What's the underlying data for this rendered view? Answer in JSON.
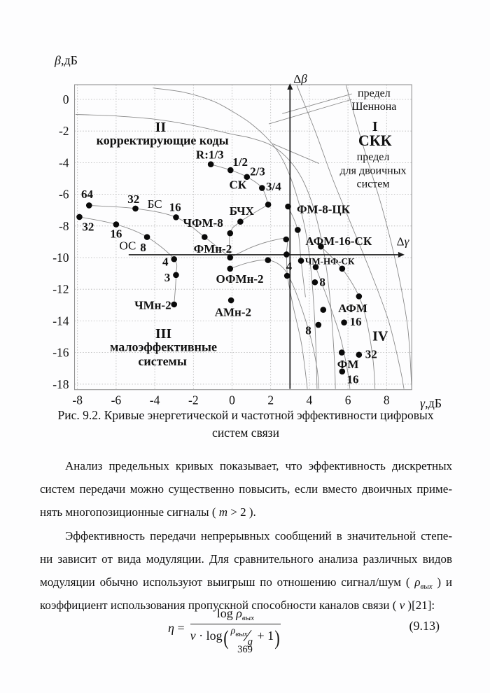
{
  "chart_data": {
    "type": "scatter",
    "title": "Кривые энергетической и частотной эффективности цифровых систем связи",
    "xlabel": {
      "italic": "γ",
      "rest": ",дБ"
    },
    "ylabel": {
      "italic": "β",
      "rest": ",дБ"
    },
    "xlim": [
      -8.15,
      9.3
    ],
    "ylim": [
      -18.35,
      0.93
    ],
    "x_ticks": [
      -8,
      -6,
      -4,
      -2,
      0,
      2,
      4,
      6,
      8
    ],
    "y_ticks": [
      0,
      -2,
      -4,
      -6,
      -8,
      -10,
      -12,
      -14,
      -16,
      -18
    ],
    "grid": true,
    "axes_arrows": {
      "dbeta": {
        "x": 3,
        "y_from": -18.3,
        "y_to": 0.62,
        "label_parts": [
          {
            "t": "Δ",
            "i": false
          },
          {
            "t": "β",
            "i": true
          }
        ],
        "label_x": 3.18,
        "label_y": 1.28
      },
      "dgamma": {
        "y": -9.82,
        "x_from": -5.35,
        "x_to": 8.6,
        "label_parts": [
          {
            "t": "Δ",
            "i": false
          },
          {
            "t": "γ",
            "i": true
          }
        ],
        "label_x": 8.52,
        "label_y": -9.0
      }
    },
    "points": [
      {
        "x": -7.4,
        "y": -6.7,
        "label": "64"
      },
      {
        "x": -5.0,
        "y": -6.9,
        "label": "32"
      },
      {
        "x": -2.9,
        "y": -7.45,
        "label": "16"
      },
      {
        "x": -1.42,
        "y": -8.7,
        "label": "ЧФМ-8"
      },
      {
        "x": -7.9,
        "y": -7.43,
        "label": "32"
      },
      {
        "x": -6.0,
        "y": -7.9,
        "label": "16"
      },
      {
        "x": -4.4,
        "y": -8.7,
        "label": "8"
      },
      {
        "x": -3.0,
        "y": -10.1,
        "label": "4"
      },
      {
        "x": -2.9,
        "y": -11.1,
        "label": "3"
      },
      {
        "x": -3.0,
        "y": -12.96,
        "label": "ЧМн-2"
      },
      {
        "x": -0.1,
        "y": -10.0,
        "label": "ФМн-2"
      },
      {
        "x": -0.1,
        "y": -10.7,
        "label": "ОФМн-2"
      },
      {
        "x": -0.05,
        "y": -12.7,
        "label": "АМн-2"
      },
      {
        "x": -0.1,
        "y": -8.46,
        "label": ""
      },
      {
        "x": 0.43,
        "y": -7.73,
        "label": ""
      },
      {
        "x": 1.87,
        "y": -6.65,
        "label": ""
      },
      {
        "x": -1.1,
        "y": -4.1,
        "label": "R:1/3"
      },
      {
        "x": -0.08,
        "y": -4.47,
        "label": "1/2"
      },
      {
        "x": 0.77,
        "y": -4.9,
        "label": "2/3"
      },
      {
        "x": 1.55,
        "y": -5.6,
        "label": "3/4"
      },
      {
        "x": 2.9,
        "y": -6.77,
        "label": "ФМ-8-ЦК"
      },
      {
        "x": 3.4,
        "y": -8.25,
        "label": ""
      },
      {
        "x": 2.8,
        "y": -8.85,
        "label": ""
      },
      {
        "x": 2.82,
        "y": -9.8,
        "label": "4"
      },
      {
        "x": 1.86,
        "y": -10.16,
        "label": ""
      },
      {
        "x": 3.57,
        "y": -10.2,
        "label": "ЧМ-НФ-СК"
      },
      {
        "x": 4.33,
        "y": -10.6,
        "label": ""
      },
      {
        "x": 5.7,
        "y": -10.7,
        "label": ""
      },
      {
        "x": 2.85,
        "y": -11.15,
        "label": ""
      },
      {
        "x": 4.29,
        "y": -11.56,
        "label": "8"
      },
      {
        "x": 4.6,
        "y": -9.3,
        "label": "АФМ-16-СК"
      },
      {
        "x": 6.57,
        "y": -12.45,
        "label": ""
      },
      {
        "x": 4.72,
        "y": -13.3,
        "label": ""
      },
      {
        "x": 5.8,
        "y": -14.1,
        "label": "16"
      },
      {
        "x": 4.47,
        "y": -14.25,
        "label": "8"
      },
      {
        "x": 5.68,
        "y": -16.0,
        "label": "ФМ"
      },
      {
        "x": 6.57,
        "y": -16.14,
        "label": "32"
      },
      {
        "x": 5.7,
        "y": -17.2,
        "label": "16"
      }
    ],
    "labels": [
      {
        "text": "64",
        "x": -7.5,
        "y": -6.0,
        "size": 17,
        "bold": true
      },
      {
        "text": "32",
        "x": -5.1,
        "y": -6.3,
        "size": 17,
        "bold": true
      },
      {
        "text": "БС",
        "x": -4.0,
        "y": -6.6,
        "size": 17,
        "bold": false
      },
      {
        "text": "16",
        "x": -2.95,
        "y": -6.8,
        "size": 17,
        "bold": true
      },
      {
        "text": "ЧФМ-8",
        "x": -1.5,
        "y": -7.8,
        "size": 17,
        "bold": true
      },
      {
        "text": "32",
        "x": -7.45,
        "y": -8.05,
        "size": 17,
        "bold": true
      },
      {
        "text": "16",
        "x": -6.0,
        "y": -8.5,
        "size": 17,
        "bold": true
      },
      {
        "text": "ОС",
        "x": -5.4,
        "y": -9.25,
        "size": 17,
        "bold": false
      },
      {
        "text": "8",
        "x": -4.6,
        "y": -9.35,
        "size": 17,
        "bold": true
      },
      {
        "text": "4",
        "x": -3.45,
        "y": -10.25,
        "size": 17,
        "bold": true
      },
      {
        "text": "3",
        "x": -3.35,
        "y": -11.25,
        "size": 17,
        "bold": true
      },
      {
        "text": "ЧМн-2",
        "x": -4.1,
        "y": -13.0,
        "size": 17,
        "bold": true
      },
      {
        "text": "R:1/3",
        "x": -1.15,
        "y": -3.5,
        "size": 17,
        "bold": true
      },
      {
        "text": "1/2",
        "x": 0.42,
        "y": -3.95,
        "size": 17,
        "bold": true
      },
      {
        "text": "2/3",
        "x": 1.32,
        "y": -4.55,
        "size": 17,
        "bold": true
      },
      {
        "text": "СК",
        "x": 0.3,
        "y": -5.4,
        "size": 17,
        "bold": true
      },
      {
        "text": "3/4",
        "x": 2.15,
        "y": -5.5,
        "size": 17,
        "bold": true
      },
      {
        "text": "БЧХ",
        "x": 0.5,
        "y": -7.05,
        "size": 17,
        "bold": true
      },
      {
        "text": "ФМн-2",
        "x": -1.0,
        "y": -9.45,
        "size": 17,
        "bold": true
      },
      {
        "text": "ОФМн-2",
        "x": 0.4,
        "y": -11.35,
        "size": 17,
        "bold": true
      },
      {
        "text": "АМн-2",
        "x": 0.05,
        "y": -13.45,
        "size": 17,
        "bold": true
      },
      {
        "text": "ФМ-8-ЦК",
        "x": 3.35,
        "y": -6.95,
        "size": 17,
        "bold": true,
        "anchor": "start"
      },
      {
        "text": "АФМ-16-СК",
        "x": 3.8,
        "y": -8.95,
        "size": 17,
        "bold": true,
        "anchor": "start"
      },
      {
        "text": "ЧМ-НФ-СК",
        "x": 3.78,
        "y": -10.22,
        "size": 13,
        "bold": true,
        "anchor": "start"
      },
      {
        "text": "4",
        "x": 2.95,
        "y": -10.55,
        "size": 17,
        "bold": true
      },
      {
        "text": "8",
        "x": 4.68,
        "y": -11.55,
        "size": 17,
        "bold": true
      },
      {
        "text": "АФМ",
        "x": 6.25,
        "y": -13.2,
        "size": 17,
        "bold": true
      },
      {
        "text": "16",
        "x": 6.4,
        "y": -14.05,
        "size": 17,
        "bold": true
      },
      {
        "text": "8",
        "x": 3.95,
        "y": -14.6,
        "size": 17,
        "bold": true
      },
      {
        "text": "IV",
        "x": 7.67,
        "y": -14.95,
        "size": 20,
        "bold": true
      },
      {
        "text": "32",
        "x": 7.2,
        "y": -16.1,
        "size": 17,
        "bold": true
      },
      {
        "text": "ФМ",
        "x": 6.0,
        "y": -16.75,
        "size": 17,
        "bold": true
      },
      {
        "text": "16",
        "x": 6.25,
        "y": -17.7,
        "size": 17,
        "bold": true
      },
      {
        "text": "II",
        "x": -3.7,
        "y": -1.75,
        "size": 20,
        "bold": true
      },
      {
        "text": "корректирующие коды",
        "x": -3.6,
        "y": -2.6,
        "size": 18,
        "bold": true
      },
      {
        "text": "I",
        "x": 7.4,
        "y": -1.7,
        "size": 20,
        "bold": true
      },
      {
        "text": "СКК",
        "x": 7.4,
        "y": -2.6,
        "size": 22,
        "bold": true
      },
      {
        "text": "предел",
        "x": 7.35,
        "y": 0.42,
        "size": 16,
        "bold": false
      },
      {
        "text": "Шеннона",
        "x": 7.35,
        "y": -0.42,
        "size": 16,
        "bold": false
      },
      {
        "text": "предел",
        "x": 7.3,
        "y": -3.62,
        "size": 16,
        "bold": false
      },
      {
        "text": "для двоичных",
        "x": 7.3,
        "y": -4.48,
        "size": 16,
        "bold": false
      },
      {
        "text": "систем",
        "x": 7.3,
        "y": -5.32,
        "size": 16,
        "bold": false
      },
      {
        "text": "III",
        "x": -3.55,
        "y": -14.8,
        "size": 20,
        "bold": true
      },
      {
        "text": "малоэффективные",
        "x": -3.55,
        "y": -15.65,
        "size": 18,
        "bold": true
      },
      {
        "text": "системы",
        "x": -3.6,
        "y": -16.55,
        "size": 18,
        "bold": true
      }
    ],
    "curves": [
      {
        "name": "shannon-limit",
        "pts": [
          [
            -4.1,
            0.72
          ],
          [
            -2.5,
            0.45
          ],
          [
            -1,
            -0.1
          ],
          [
            0,
            -0.75
          ],
          [
            1,
            -1.55
          ],
          [
            2,
            -2.7
          ],
          [
            2.7,
            -4.0
          ],
          [
            3.3,
            -5.9
          ],
          [
            3.8,
            -8.3
          ],
          [
            4.1,
            -11
          ],
          [
            4.3,
            -14.5
          ],
          [
            4.4,
            -18.3
          ]
        ]
      },
      {
        "name": "binary-limit",
        "pts": [
          [
            -8.1,
            -0.95
          ],
          [
            -6,
            -1.05
          ],
          [
            -4,
            -1.25
          ],
          [
            -2,
            -1.65
          ],
          [
            0,
            -2.2
          ],
          [
            1,
            -2.45
          ],
          [
            2.1,
            -2.95
          ],
          [
            3,
            -3.9
          ],
          [
            3.7,
            -5.2
          ],
          [
            4.3,
            -7.2
          ],
          [
            4.8,
            -10
          ],
          [
            5.1,
            -13
          ],
          [
            5.3,
            -16.5
          ],
          [
            5.35,
            -18.3
          ]
        ]
      },
      {
        "name": "skk-boundary",
        "pts": [
          [
            3.35,
            0.9
          ],
          [
            4.3,
            -2
          ],
          [
            5.2,
            -5
          ],
          [
            6.2,
            -8
          ],
          [
            7.2,
            -11
          ],
          [
            8.1,
            -14
          ],
          [
            8.7,
            -17
          ],
          [
            8.9,
            -18.3
          ]
        ]
      },
      {
        "name": "outer-boundary",
        "pts": [
          [
            5.9,
            0.9
          ],
          [
            6.8,
            -3
          ],
          [
            7.8,
            -7
          ],
          [
            8.6,
            -11
          ],
          [
            9.1,
            -14.5
          ],
          [
            9.3,
            -18.3
          ]
        ]
      },
      {
        "name": "bs-chain",
        "pts": [
          [
            -7.4,
            -6.7
          ],
          [
            -5.0,
            -6.9
          ],
          [
            -2.9,
            -7.45
          ],
          [
            -1.42,
            -8.7
          ],
          [
            -0.1,
            -10.0
          ]
        ]
      },
      {
        "name": "os-chain",
        "pts": [
          [
            -7.9,
            -7.43
          ],
          [
            -6.0,
            -7.9
          ],
          [
            -4.4,
            -8.7
          ],
          [
            -3.0,
            -10.1
          ],
          [
            -2.9,
            -11.1
          ],
          [
            -3.0,
            -12.96
          ]
        ]
      },
      {
        "name": "sk-chain",
        "pts": [
          [
            -1.1,
            -4.1
          ],
          [
            -0.08,
            -4.47
          ],
          [
            0.77,
            -4.9
          ],
          [
            1.55,
            -5.6
          ],
          [
            1.87,
            -6.65
          ]
        ]
      },
      {
        "name": "bchh-chain",
        "pts": [
          [
            -0.1,
            -10.0
          ],
          [
            -0.1,
            -8.46
          ],
          [
            0.43,
            -7.73
          ],
          [
            1.87,
            -6.65
          ]
        ]
      },
      {
        "name": "fm8ck-chain",
        "pts": [
          [
            2.9,
            -6.77
          ],
          [
            3.4,
            -8.25
          ],
          [
            3.57,
            -10.2
          ],
          [
            3.8,
            -12.5
          ]
        ]
      },
      {
        "name": "fm-chain",
        "pts": [
          [
            -0.1,
            -10.0
          ],
          [
            1.0,
            -9.35
          ],
          [
            2.0,
            -8.95
          ],
          [
            2.8,
            -8.85
          ],
          [
            2.82,
            -9.8
          ],
          [
            2.87,
            -11.15
          ],
          [
            3.15,
            -13
          ],
          [
            3.6,
            -15.5
          ],
          [
            3.9,
            -18.3
          ]
        ]
      },
      {
        "name": "ofm-chain",
        "pts": [
          [
            -0.1,
            -10.7
          ],
          [
            0.9,
            -10.3
          ],
          [
            1.86,
            -10.16
          ],
          [
            2.6,
            -10.6
          ],
          [
            3.1,
            -11.6
          ],
          [
            3.6,
            -13.2
          ],
          [
            4.1,
            -15.2
          ],
          [
            4.4,
            -17
          ],
          [
            4.5,
            -18.3
          ]
        ]
      },
      {
        "name": "steep-a",
        "pts": [
          [
            4.33,
            -10.6
          ],
          [
            5.0,
            -12.8
          ],
          [
            5.6,
            -15
          ],
          [
            6.0,
            -17.3
          ],
          [
            6.1,
            -18.3
          ]
        ]
      },
      {
        "name": "afm-sk-chain",
        "pts": [
          [
            4.6,
            -9.3
          ],
          [
            5.7,
            -10.7
          ],
          [
            6.57,
            -12.45
          ],
          [
            7.0,
            -14.2
          ],
          [
            7.3,
            -16.5
          ],
          [
            7.4,
            -18.3
          ]
        ]
      }
    ],
    "callouts": [
      {
        "name": "shannon-pointer-1",
        "from": [
          6.2,
          0.0
        ],
        "to": [
          1.9,
          -1.55
        ]
      },
      {
        "name": "shannon-pointer-2",
        "from": [
          6.2,
          0.35
        ],
        "to": [
          2.6,
          -0.9
        ]
      },
      {
        "name": "binary-pointer",
        "from": [
          4.5,
          -4.05
        ],
        "to": [
          2.1,
          -2.8
        ]
      }
    ],
    "colors": {
      "curve": "#8a8a8a",
      "grid": "#b2b2b2",
      "border": "#8a8a8a",
      "dot": "#0a0a0a",
      "arrow": "#1c1c1c",
      "text": "#111111"
    }
  },
  "caption": {
    "line1": "Рис. 9.2. Кривые энергетической и частотной эффективности цифровых",
    "line2": "систем связи"
  },
  "para1": {
    "line1": "Анализ предельных кривых показывает, что эффективность дискретных",
    "line2": "систем передачи можно существенно повысить, если вместо двоичных приме-",
    "line3_pre": "нять многопозиционные сигналы ( ",
    "m": "m",
    "line3_post": " > 2 )."
  },
  "para2": {
    "line1": "Эффективность передачи непрерывных сообщений в значительной степе-",
    "line2": "ни зависит от вида модуляции. Для сравнительного анализа различных видов",
    "line3_pre": "модуляции обычно используют выигрыш по отношению сигнал/шум ( ",
    "rho": "ρ",
    "rho_sub": "вых",
    "line3_post": " ) и",
    "line4_pre": "коэффициент использования пропускной способности каналов связи ( ",
    "nu": "ν",
    "line4_post": " )[21]:"
  },
  "formula": {
    "eta": "η",
    "eq": "=",
    "log1": "log ",
    "rho1": "ρ",
    "rho1_sub": "вых",
    "nu": "ν",
    "cdot": " · ",
    "log2": "log",
    "lparen": "(",
    "rho2": "ρ",
    "rho2_sub": "вых",
    "slash": "∕",
    "g": "g",
    "plus_one": " + 1",
    "rparen": ")",
    "number": "(9.13)"
  },
  "footer": {
    "page_number": "369"
  }
}
